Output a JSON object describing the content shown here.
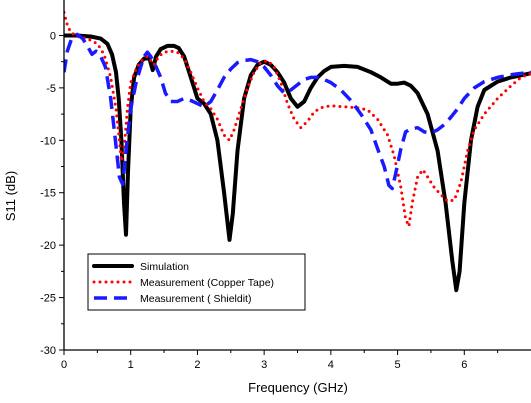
{
  "chart_data": {
    "type": "line",
    "xlabel": "Frequency (GHz)",
    "ylabel": "S11 (dB)",
    "xlim": [
      0,
      7
    ],
    "ylim": [
      -30,
      3
    ],
    "xticks": [
      0,
      1,
      2,
      3,
      4,
      5,
      6
    ],
    "yticks": [
      0,
      -5,
      -10,
      -15,
      -20,
      -25,
      -30
    ],
    "grid": false,
    "legend_position": "bottom-left",
    "series": [
      {
        "name": "Simulation",
        "color": "#000000",
        "style": "solid",
        "points": [
          [
            0,
            0
          ],
          [
            0.2,
            0
          ],
          [
            0.4,
            -0.1
          ],
          [
            0.55,
            -0.3
          ],
          [
            0.65,
            -0.8
          ],
          [
            0.72,
            -1.8
          ],
          [
            0.78,
            -3.5
          ],
          [
            0.82,
            -6
          ],
          [
            0.86,
            -10
          ],
          [
            0.9,
            -16
          ],
          [
            0.93,
            -19
          ],
          [
            0.96,
            -13
          ],
          [
            1.0,
            -7
          ],
          [
            1.05,
            -4
          ],
          [
            1.12,
            -2.8
          ],
          [
            1.2,
            -2.2
          ],
          [
            1.28,
            -2.2
          ],
          [
            1.33,
            -3.3
          ],
          [
            1.38,
            -2
          ],
          [
            1.45,
            -1.3
          ],
          [
            1.55,
            -1.0
          ],
          [
            1.65,
            -1.0
          ],
          [
            1.72,
            -1.2
          ],
          [
            1.8,
            -2
          ],
          [
            1.9,
            -4
          ],
          [
            2.0,
            -6
          ],
          [
            2.1,
            -6.5
          ],
          [
            2.2,
            -7.5
          ],
          [
            2.3,
            -10
          ],
          [
            2.4,
            -15
          ],
          [
            2.48,
            -19.5
          ],
          [
            2.53,
            -17
          ],
          [
            2.6,
            -11
          ],
          [
            2.7,
            -6
          ],
          [
            2.8,
            -3.8
          ],
          [
            2.9,
            -2.8
          ],
          [
            3.0,
            -2.5
          ],
          [
            3.1,
            -2.8
          ],
          [
            3.2,
            -3.5
          ],
          [
            3.3,
            -4.5
          ],
          [
            3.4,
            -6
          ],
          [
            3.5,
            -6.8
          ],
          [
            3.6,
            -6.3
          ],
          [
            3.7,
            -5
          ],
          [
            3.8,
            -4
          ],
          [
            3.9,
            -3.4
          ],
          [
            4.0,
            -3
          ],
          [
            4.2,
            -2.9
          ],
          [
            4.4,
            -3
          ],
          [
            4.6,
            -3.5
          ],
          [
            4.75,
            -4
          ],
          [
            4.9,
            -4.6
          ],
          [
            5.0,
            -4.6
          ],
          [
            5.1,
            -4.5
          ],
          [
            5.2,
            -4.8
          ],
          [
            5.3,
            -5.5
          ],
          [
            5.45,
            -7.5
          ],
          [
            5.6,
            -11
          ],
          [
            5.72,
            -16
          ],
          [
            5.82,
            -21.5
          ],
          [
            5.88,
            -24.3
          ],
          [
            5.93,
            -22.5
          ],
          [
            6.0,
            -16
          ],
          [
            6.1,
            -10
          ],
          [
            6.2,
            -6.8
          ],
          [
            6.3,
            -5.2
          ],
          [
            6.5,
            -4.4
          ],
          [
            6.7,
            -4.0
          ],
          [
            7.0,
            -3.6
          ]
        ]
      },
      {
        "name": "Measurement (Copper Tape)",
        "color": "#ff0000",
        "style": "dotted",
        "points": [
          [
            0,
            2.2
          ],
          [
            0.05,
            1
          ],
          [
            0.1,
            0.3
          ],
          [
            0.2,
            -0.1
          ],
          [
            0.35,
            -0.3
          ],
          [
            0.5,
            -0.8
          ],
          [
            0.6,
            -1.8
          ],
          [
            0.7,
            -4
          ],
          [
            0.78,
            -7
          ],
          [
            0.83,
            -10
          ],
          [
            0.86,
            -12
          ],
          [
            0.9,
            -11
          ],
          [
            0.95,
            -7
          ],
          [
            1.0,
            -4.5
          ],
          [
            1.08,
            -3.2
          ],
          [
            1.15,
            -2.5
          ],
          [
            1.25,
            -2
          ],
          [
            1.35,
            -2.8
          ],
          [
            1.42,
            -2
          ],
          [
            1.5,
            -1.6
          ],
          [
            1.6,
            -1.5
          ],
          [
            1.7,
            -1.6
          ],
          [
            1.8,
            -2.2
          ],
          [
            1.9,
            -3.5
          ],
          [
            2.0,
            -5
          ],
          [
            2.1,
            -6.3
          ],
          [
            2.2,
            -7
          ],
          [
            2.3,
            -8
          ],
          [
            2.4,
            -9.5
          ],
          [
            2.48,
            -10
          ],
          [
            2.55,
            -9
          ],
          [
            2.65,
            -7
          ],
          [
            2.75,
            -5
          ],
          [
            2.85,
            -3.5
          ],
          [
            2.95,
            -2.6
          ],
          [
            3.05,
            -2.4
          ],
          [
            3.15,
            -3
          ],
          [
            3.25,
            -4.5
          ],
          [
            3.35,
            -6.5
          ],
          [
            3.45,
            -8
          ],
          [
            3.55,
            -8.8
          ],
          [
            3.65,
            -8.2
          ],
          [
            3.75,
            -7.3
          ],
          [
            3.85,
            -6.9
          ],
          [
            4.0,
            -6.7
          ],
          [
            4.2,
            -6.8
          ],
          [
            4.4,
            -6.9
          ],
          [
            4.55,
            -7.1
          ],
          [
            4.7,
            -8
          ],
          [
            4.85,
            -9.5
          ],
          [
            4.95,
            -11.5
          ],
          [
            5.05,
            -14.5
          ],
          [
            5.12,
            -17.5
          ],
          [
            5.17,
            -18.2
          ],
          [
            5.22,
            -16
          ],
          [
            5.3,
            -13.5
          ],
          [
            5.38,
            -12.8
          ],
          [
            5.45,
            -13.5
          ],
          [
            5.55,
            -14.5
          ],
          [
            5.65,
            -15.2
          ],
          [
            5.75,
            -15.8
          ],
          [
            5.85,
            -15.7
          ],
          [
            5.95,
            -14
          ],
          [
            6.05,
            -11
          ],
          [
            6.15,
            -9
          ],
          [
            6.3,
            -7.5
          ],
          [
            6.5,
            -6
          ],
          [
            6.7,
            -4.8
          ],
          [
            6.85,
            -4
          ],
          [
            7.0,
            -3.6
          ]
        ]
      },
      {
        "name": "Measurement ( Shieldit)",
        "color": "#1a1aff",
        "style": "dashed",
        "points": [
          [
            0,
            -3.5
          ],
          [
            0.05,
            -1.5
          ],
          [
            0.12,
            -0.2
          ],
          [
            0.2,
            0.1
          ],
          [
            0.28,
            -0.3
          ],
          [
            0.35,
            -1
          ],
          [
            0.42,
            -1.8
          ],
          [
            0.48,
            -1.5
          ],
          [
            0.55,
            -2
          ],
          [
            0.62,
            -3
          ],
          [
            0.7,
            -6
          ],
          [
            0.77,
            -10
          ],
          [
            0.83,
            -13.5
          ],
          [
            0.88,
            -14.2
          ],
          [
            0.93,
            -11
          ],
          [
            1.0,
            -7
          ],
          [
            1.08,
            -4.5
          ],
          [
            1.15,
            -3
          ],
          [
            1.2,
            -2
          ],
          [
            1.25,
            -1.6
          ],
          [
            1.3,
            -2
          ],
          [
            1.38,
            -3
          ],
          [
            1.45,
            -4
          ],
          [
            1.52,
            -5.5
          ],
          [
            1.6,
            -6.3
          ],
          [
            1.7,
            -6.3
          ],
          [
            1.8,
            -6
          ],
          [
            1.9,
            -6.2
          ],
          [
            2.0,
            -6.5
          ],
          [
            2.1,
            -6.8
          ],
          [
            2.2,
            -6.3
          ],
          [
            2.3,
            -5.2
          ],
          [
            2.4,
            -4.0
          ],
          [
            2.5,
            -3.2
          ],
          [
            2.6,
            -2.6
          ],
          [
            2.7,
            -2.4
          ],
          [
            2.8,
            -2.3
          ],
          [
            2.9,
            -2.5
          ],
          [
            3.0,
            -3
          ],
          [
            3.1,
            -3.8
          ],
          [
            3.2,
            -4.8
          ],
          [
            3.3,
            -5.5
          ],
          [
            3.4,
            -5.2
          ],
          [
            3.5,
            -4.7
          ],
          [
            3.6,
            -4.2
          ],
          [
            3.7,
            -4.0
          ],
          [
            3.8,
            -4.0
          ],
          [
            3.9,
            -4.2
          ],
          [
            4.0,
            -4.5
          ],
          [
            4.15,
            -5.2
          ],
          [
            4.3,
            -6.2
          ],
          [
            4.45,
            -7.5
          ],
          [
            4.6,
            -9
          ],
          [
            4.7,
            -10.8
          ],
          [
            4.8,
            -12.5
          ],
          [
            4.87,
            -14.3
          ],
          [
            4.92,
            -14.6
          ],
          [
            4.97,
            -13.2
          ],
          [
            5.05,
            -10.8
          ],
          [
            5.12,
            -9.2
          ],
          [
            5.2,
            -8.9
          ],
          [
            5.3,
            -8.8
          ],
          [
            5.4,
            -9.2
          ],
          [
            5.5,
            -9.3
          ],
          [
            5.6,
            -9.0
          ],
          [
            5.7,
            -8.5
          ],
          [
            5.8,
            -7.8
          ],
          [
            5.9,
            -7
          ],
          [
            6.0,
            -6
          ],
          [
            6.15,
            -5
          ],
          [
            6.3,
            -4.4
          ],
          [
            6.5,
            -4.0
          ],
          [
            6.75,
            -3.7
          ],
          [
            7.0,
            -3.5
          ]
        ]
      }
    ]
  }
}
